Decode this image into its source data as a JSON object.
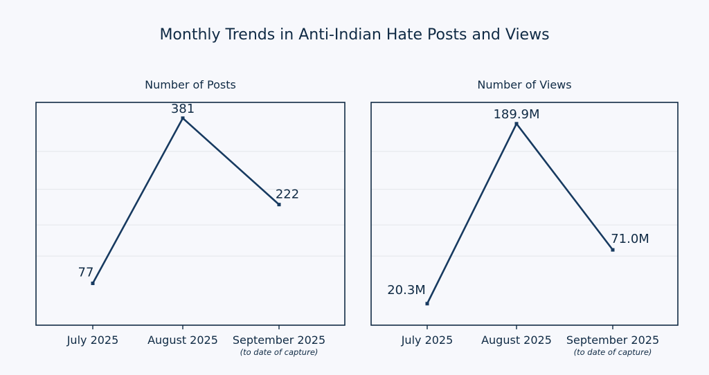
{
  "page_title": "Monthly Trends in Anti-Indian Hate Posts and Views",
  "colors": {
    "line": "#173a60",
    "text": "#0f2a44",
    "frame": "#0f2a44",
    "grid": "#e3e6ea",
    "background": "#f7f8fc"
  },
  "chart_data": [
    {
      "type": "line",
      "title": "Number of Posts",
      "categories": [
        "July 2025",
        "August 2025",
        "September 2025"
      ],
      "category_sublabels": [
        "",
        "",
        "(to date of capture)"
      ],
      "values": [
        77,
        381,
        222
      ],
      "value_labels": [
        "77",
        "381",
        "222"
      ],
      "ylim": [
        0,
        410
      ],
      "grid": true,
      "y_tick_labels_shown": false
    },
    {
      "type": "line",
      "title": "Number of Views",
      "categories": [
        "July 2025",
        "August 2025",
        "September 2025"
      ],
      "category_sublabels": [
        "",
        "",
        "(to date of capture)"
      ],
      "values": [
        20.3,
        189.9,
        71.0
      ],
      "value_labels": [
        "20.3M",
        "189.9M",
        "71.0M"
      ],
      "ylim": [
        0,
        210
      ],
      "grid": true,
      "y_tick_labels_shown": false
    }
  ]
}
